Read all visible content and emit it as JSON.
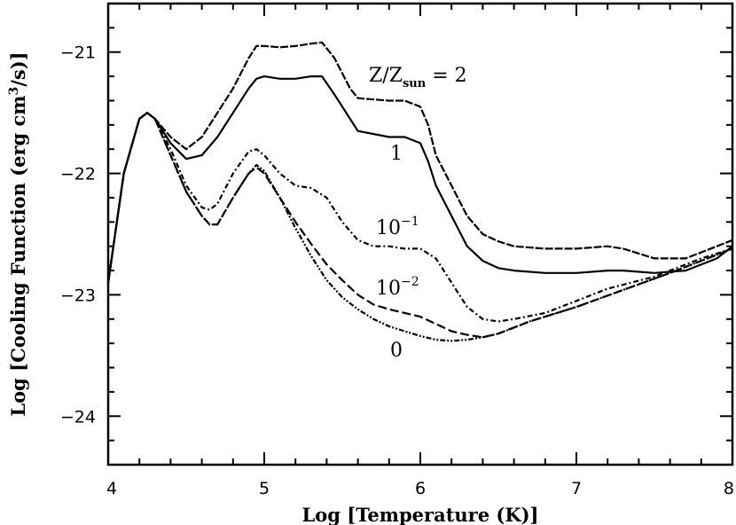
{
  "chart_data": {
    "type": "line",
    "xlabel": "Log [Temperature (K)]",
    "ylabel": "Log [Cooling Function (erg cm",
    "ylabel_sup": "3",
    "ylabel_tail": "/s)]",
    "xlim": [
      4,
      8
    ],
    "ylim": [
      -24.4,
      -20.6
    ],
    "x_ticks": [
      4,
      5,
      6,
      7,
      8
    ],
    "x_tick_labels": [
      "4",
      "5",
      "6",
      "7",
      "8"
    ],
    "y_ticks": [
      -21,
      -22,
      -23,
      -24
    ],
    "y_tick_labels": [
      "−21",
      "−22",
      "−23",
      "−24"
    ],
    "grid": false,
    "annotations": {
      "z2_main": "Z/Z",
      "z2_sub": "sun",
      "z2_tail": " = 2",
      "z1": "1",
      "z01_base": "10",
      "z01_exp": "−1",
      "z001_base": "10",
      "z001_exp": "−2",
      "z0": "0"
    },
    "series": [
      {
        "key": "z2",
        "dash": "9,2",
        "x": [
          4.0,
          4.1,
          4.2,
          4.25,
          4.3,
          4.4,
          4.5,
          4.6,
          4.7,
          4.8,
          4.9,
          4.95,
          5.0,
          5.1,
          5.2,
          5.3,
          5.37,
          5.45,
          5.55,
          5.6,
          5.8,
          5.9,
          6.0,
          6.05,
          6.1,
          6.2,
          6.3,
          6.4,
          6.5,
          6.6,
          6.8,
          7.0,
          7.2,
          7.3,
          7.5,
          7.7,
          7.9,
          8.0
        ],
        "y": [
          -22.9,
          -22.0,
          -21.55,
          -21.5,
          -21.55,
          -21.7,
          -21.8,
          -21.7,
          -21.5,
          -21.3,
          -21.05,
          -20.95,
          -20.95,
          -20.96,
          -20.95,
          -20.93,
          -20.92,
          -21.05,
          -21.3,
          -21.38,
          -21.4,
          -21.4,
          -21.45,
          -21.6,
          -21.85,
          -22.1,
          -22.35,
          -22.5,
          -22.56,
          -22.6,
          -22.62,
          -22.62,
          -22.6,
          -22.62,
          -22.7,
          -22.7,
          -22.6,
          -22.55
        ]
      },
      {
        "key": "z1",
        "dash": "",
        "x": [
          4.0,
          4.1,
          4.2,
          4.25,
          4.3,
          4.4,
          4.5,
          4.6,
          4.7,
          4.8,
          4.9,
          4.95,
          5.0,
          5.1,
          5.2,
          5.3,
          5.37,
          5.45,
          5.55,
          5.6,
          5.8,
          5.9,
          6.0,
          6.05,
          6.1,
          6.2,
          6.3,
          6.4,
          6.5,
          6.6,
          6.8,
          7.0,
          7.2,
          7.3,
          7.5,
          7.7,
          7.9,
          8.0
        ],
        "y": [
          -22.9,
          -22.0,
          -21.55,
          -21.5,
          -21.55,
          -21.75,
          -21.88,
          -21.85,
          -21.7,
          -21.5,
          -21.3,
          -21.22,
          -21.2,
          -21.22,
          -21.22,
          -21.2,
          -21.2,
          -21.35,
          -21.55,
          -21.65,
          -21.7,
          -21.7,
          -21.75,
          -21.9,
          -22.1,
          -22.35,
          -22.6,
          -22.72,
          -22.78,
          -22.8,
          -22.82,
          -22.82,
          -22.8,
          -22.8,
          -22.82,
          -22.8,
          -22.7,
          -22.6
        ]
      },
      {
        "key": "z01",
        "dash": "6,3,2,3",
        "x": [
          4.0,
          4.1,
          4.2,
          4.25,
          4.3,
          4.4,
          4.5,
          4.6,
          4.65,
          4.7,
          4.8,
          4.9,
          4.95,
          5.0,
          5.1,
          5.2,
          5.3,
          5.4,
          5.5,
          5.6,
          5.7,
          5.8,
          5.9,
          6.0,
          6.1,
          6.2,
          6.3,
          6.4,
          6.5,
          6.6,
          6.8,
          7.0,
          7.2,
          7.5,
          7.8,
          8.0
        ],
        "y": [
          -22.9,
          -22.0,
          -21.55,
          -21.5,
          -21.55,
          -21.8,
          -22.1,
          -22.28,
          -22.3,
          -22.25,
          -22.0,
          -21.82,
          -21.8,
          -21.85,
          -22.0,
          -22.1,
          -22.12,
          -22.2,
          -22.4,
          -22.55,
          -22.6,
          -22.6,
          -22.62,
          -22.62,
          -22.7,
          -22.9,
          -23.1,
          -23.2,
          -23.22,
          -23.2,
          -23.15,
          -23.05,
          -22.95,
          -22.85,
          -22.7,
          -22.62
        ]
      },
      {
        "key": "z001",
        "dash": "10,4",
        "x": [
          4.0,
          4.1,
          4.2,
          4.25,
          4.3,
          4.4,
          4.5,
          4.6,
          4.65,
          4.7,
          4.8,
          4.9,
          4.95,
          5.0,
          5.1,
          5.2,
          5.3,
          5.4,
          5.5,
          5.6,
          5.7,
          5.8,
          5.9,
          6.0,
          6.1,
          6.2,
          6.3,
          6.4,
          6.5,
          6.7,
          7.0,
          7.3,
          7.6,
          7.8,
          8.0
        ],
        "y": [
          -22.9,
          -22.0,
          -21.55,
          -21.5,
          -21.55,
          -21.85,
          -22.15,
          -22.35,
          -22.42,
          -22.42,
          -22.2,
          -22.0,
          -21.95,
          -22.0,
          -22.2,
          -22.4,
          -22.58,
          -22.75,
          -22.88,
          -23.0,
          -23.08,
          -23.12,
          -23.15,
          -23.18,
          -23.24,
          -23.3,
          -23.33,
          -23.35,
          -23.32,
          -23.22,
          -23.1,
          -22.96,
          -22.82,
          -22.72,
          -22.62
        ]
      },
      {
        "key": "z0",
        "dash": "6,2,2,2,2,2",
        "x": [
          4.0,
          4.1,
          4.2,
          4.25,
          4.3,
          4.4,
          4.5,
          4.6,
          4.65,
          4.7,
          4.8,
          4.9,
          4.95,
          5.0,
          5.1,
          5.2,
          5.3,
          5.4,
          5.5,
          5.6,
          5.7,
          5.8,
          5.9,
          6.0,
          6.1,
          6.2,
          6.3,
          6.4,
          6.5,
          6.7,
          7.0,
          7.3,
          7.6,
          7.8,
          8.0
        ],
        "y": [
          -22.9,
          -22.0,
          -21.55,
          -21.5,
          -21.55,
          -21.85,
          -22.15,
          -22.35,
          -22.42,
          -22.42,
          -22.2,
          -22.0,
          -21.93,
          -21.98,
          -22.2,
          -22.45,
          -22.68,
          -22.88,
          -23.02,
          -23.12,
          -23.2,
          -23.26,
          -23.3,
          -23.34,
          -23.37,
          -23.38,
          -23.37,
          -23.35,
          -23.32,
          -23.22,
          -23.1,
          -22.96,
          -22.82,
          -22.72,
          -22.62
        ]
      }
    ]
  }
}
